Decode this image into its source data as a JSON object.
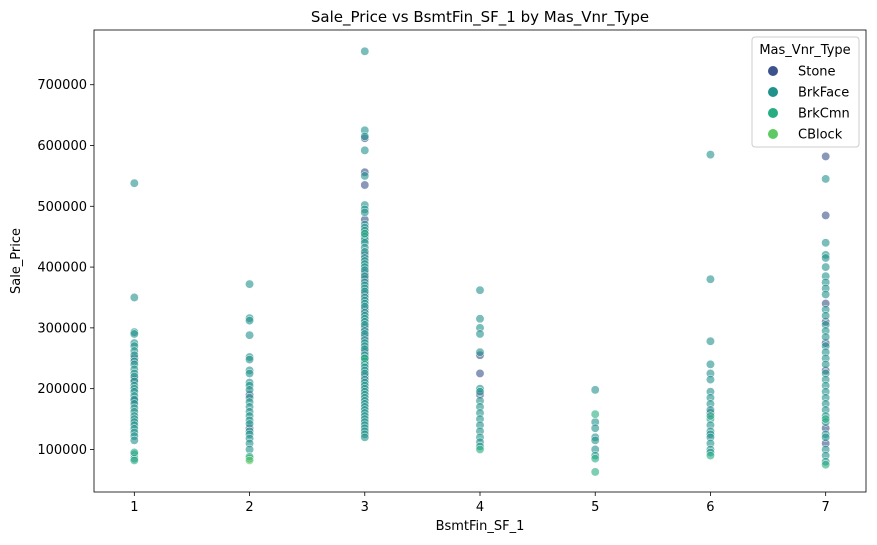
{
  "chart_data": {
    "type": "scatter",
    "title": "Sale_Price vs BsmtFin_SF_1 by Mas_Vnr_Type",
    "xlabel": "BsmtFin_SF_1",
    "ylabel": "Sale_Price",
    "xlim": [
      0.65,
      7.35
    ],
    "ylim": [
      30000,
      790000
    ],
    "xticks": [
      1,
      2,
      3,
      4,
      5,
      6,
      7
    ],
    "yticks": [
      100000,
      200000,
      300000,
      400000,
      500000,
      600000,
      700000
    ],
    "grid": false,
    "legend": {
      "title": "Mas_Vnr_Type",
      "placement": "top-right",
      "entries": [
        {
          "name": "Stone",
          "color": "#3b528b"
        },
        {
          "name": "BrkFace",
          "color": "#21918c"
        },
        {
          "name": "BrkCmn",
          "color": "#27ad81"
        },
        {
          "name": "CBlock",
          "color": "#5ec962"
        }
      ]
    },
    "series": [
      {
        "name": "Stone",
        "color": "#3b528b",
        "points": [
          [
            1,
            250000
          ],
          [
            1,
            180000
          ],
          [
            1,
            215000
          ],
          [
            2,
            135000
          ],
          [
            2,
            190000
          ],
          [
            3,
            612000
          ],
          [
            3,
            556000
          ],
          [
            3,
            535000
          ],
          [
            3,
            478000
          ],
          [
            3,
            455000
          ],
          [
            3,
            420000
          ],
          [
            3,
            390000
          ],
          [
            3,
            380000
          ],
          [
            3,
            355000
          ],
          [
            3,
            330000
          ],
          [
            3,
            300000
          ],
          [
            3,
            285000
          ],
          [
            3,
            260000
          ],
          [
            3,
            220000
          ],
          [
            4,
            255000
          ],
          [
            4,
            225000
          ],
          [
            4,
            190000
          ],
          [
            6,
            160000
          ],
          [
            7,
            582000
          ],
          [
            7,
            485000
          ],
          [
            7,
            340000
          ],
          [
            7,
            310000
          ],
          [
            7,
            275000
          ],
          [
            7,
            230000
          ],
          [
            7,
            135000
          ],
          [
            7,
            110000
          ]
        ]
      },
      {
        "name": "BrkFace",
        "color": "#21918c",
        "points": [
          [
            1,
            538000
          ],
          [
            1,
            350000
          ],
          [
            1,
            293000
          ],
          [
            1,
            290000
          ],
          [
            1,
            275000
          ],
          [
            1,
            270000
          ],
          [
            1,
            262000
          ],
          [
            1,
            255000
          ],
          [
            1,
            245000
          ],
          [
            1,
            240000
          ],
          [
            1,
            232000
          ],
          [
            1,
            225000
          ],
          [
            1,
            220000
          ],
          [
            1,
            212000
          ],
          [
            1,
            205000
          ],
          [
            1,
            200000
          ],
          [
            1,
            195000
          ],
          [
            1,
            188000
          ],
          [
            1,
            182000
          ],
          [
            1,
            175000
          ],
          [
            1,
            168000
          ],
          [
            1,
            162000
          ],
          [
            1,
            155000
          ],
          [
            1,
            150000
          ],
          [
            1,
            145000
          ],
          [
            1,
            140000
          ],
          [
            1,
            134000
          ],
          [
            1,
            128000
          ],
          [
            1,
            122000
          ],
          [
            1,
            115000
          ],
          [
            1,
            92000
          ],
          [
            1,
            85000
          ],
          [
            2,
            372000
          ],
          [
            2,
            316000
          ],
          [
            2,
            312000
          ],
          [
            2,
            288000
          ],
          [
            2,
            252000
          ],
          [
            2,
            248000
          ],
          [
            2,
            230000
          ],
          [
            2,
            225000
          ],
          [
            2,
            210000
          ],
          [
            2,
            205000
          ],
          [
            2,
            198000
          ],
          [
            2,
            185000
          ],
          [
            2,
            178000
          ],
          [
            2,
            170000
          ],
          [
            2,
            162000
          ],
          [
            2,
            155000
          ],
          [
            2,
            148000
          ],
          [
            2,
            142000
          ],
          [
            2,
            130000
          ],
          [
            2,
            125000
          ],
          [
            2,
            118000
          ],
          [
            2,
            110000
          ],
          [
            2,
            100000
          ],
          [
            2,
            85000
          ],
          [
            3,
            755000
          ],
          [
            3,
            625000
          ],
          [
            3,
            615000
          ],
          [
            3,
            592000
          ],
          [
            3,
            550000
          ],
          [
            3,
            502000
          ],
          [
            3,
            495000
          ],
          [
            3,
            490000
          ],
          [
            3,
            470000
          ],
          [
            3,
            465000
          ],
          [
            3,
            460000
          ],
          [
            3,
            450000
          ],
          [
            3,
            445000
          ],
          [
            3,
            440000
          ],
          [
            3,
            432000
          ],
          [
            3,
            425000
          ],
          [
            3,
            415000
          ],
          [
            3,
            410000
          ],
          [
            3,
            405000
          ],
          [
            3,
            400000
          ],
          [
            3,
            395000
          ],
          [
            3,
            385000
          ],
          [
            3,
            375000
          ],
          [
            3,
            370000
          ],
          [
            3,
            365000
          ],
          [
            3,
            360000
          ],
          [
            3,
            350000
          ],
          [
            3,
            345000
          ],
          [
            3,
            340000
          ],
          [
            3,
            335000
          ],
          [
            3,
            325000
          ],
          [
            3,
            320000
          ],
          [
            3,
            315000
          ],
          [
            3,
            310000
          ],
          [
            3,
            305000
          ],
          [
            3,
            295000
          ],
          [
            3,
            290000
          ],
          [
            3,
            280000
          ],
          [
            3,
            275000
          ],
          [
            3,
            270000
          ],
          [
            3,
            265000
          ],
          [
            3,
            255000
          ],
          [
            3,
            250000
          ],
          [
            3,
            245000
          ],
          [
            3,
            240000
          ],
          [
            3,
            235000
          ],
          [
            3,
            230000
          ],
          [
            3,
            225000
          ],
          [
            3,
            215000
          ],
          [
            3,
            210000
          ],
          [
            3,
            205000
          ],
          [
            3,
            200000
          ],
          [
            3,
            195000
          ],
          [
            3,
            190000
          ],
          [
            3,
            185000
          ],
          [
            3,
            180000
          ],
          [
            3,
            175000
          ],
          [
            3,
            170000
          ],
          [
            3,
            165000
          ],
          [
            3,
            160000
          ],
          [
            3,
            155000
          ],
          [
            3,
            150000
          ],
          [
            3,
            145000
          ],
          [
            3,
            140000
          ],
          [
            3,
            135000
          ],
          [
            3,
            130000
          ],
          [
            3,
            125000
          ],
          [
            3,
            120000
          ],
          [
            4,
            362000
          ],
          [
            4,
            315000
          ],
          [
            4,
            300000
          ],
          [
            4,
            290000
          ],
          [
            4,
            260000
          ],
          [
            4,
            200000
          ],
          [
            4,
            195000
          ],
          [
            4,
            180000
          ],
          [
            4,
            170000
          ],
          [
            4,
            160000
          ],
          [
            4,
            150000
          ],
          [
            4,
            140000
          ],
          [
            4,
            130000
          ],
          [
            4,
            120000
          ],
          [
            4,
            112000
          ],
          [
            4,
            105000
          ],
          [
            5,
            198000
          ],
          [
            5,
            145000
          ],
          [
            5,
            135000
          ],
          [
            5,
            120000
          ],
          [
            5,
            115000
          ],
          [
            5,
            100000
          ],
          [
            5,
            90000
          ],
          [
            6,
            585000
          ],
          [
            6,
            380000
          ],
          [
            6,
            278000
          ],
          [
            6,
            240000
          ],
          [
            6,
            225000
          ],
          [
            6,
            215000
          ],
          [
            6,
            195000
          ],
          [
            6,
            185000
          ],
          [
            6,
            175000
          ],
          [
            6,
            165000
          ],
          [
            6,
            150000
          ],
          [
            6,
            140000
          ],
          [
            6,
            130000
          ],
          [
            6,
            125000
          ],
          [
            6,
            120000
          ],
          [
            6,
            110000
          ],
          [
            6,
            100000
          ],
          [
            6,
            95000
          ],
          [
            7,
            545000
          ],
          [
            7,
            440000
          ],
          [
            7,
            420000
          ],
          [
            7,
            415000
          ],
          [
            7,
            400000
          ],
          [
            7,
            385000
          ],
          [
            7,
            375000
          ],
          [
            7,
            365000
          ],
          [
            7,
            355000
          ],
          [
            7,
            330000
          ],
          [
            7,
            320000
          ],
          [
            7,
            305000
          ],
          [
            7,
            295000
          ],
          [
            7,
            285000
          ],
          [
            7,
            270000
          ],
          [
            7,
            260000
          ],
          [
            7,
            250000
          ],
          [
            7,
            240000
          ],
          [
            7,
            225000
          ],
          [
            7,
            215000
          ],
          [
            7,
            205000
          ],
          [
            7,
            195000
          ],
          [
            7,
            185000
          ],
          [
            7,
            175000
          ],
          [
            7,
            165000
          ],
          [
            7,
            155000
          ],
          [
            7,
            145000
          ],
          [
            7,
            125000
          ],
          [
            7,
            120000
          ],
          [
            7,
            100000
          ],
          [
            7,
            90000
          ],
          [
            7,
            80000
          ]
        ]
      },
      {
        "name": "BrkCmn",
        "color": "#27ad81",
        "points": [
          [
            1,
            95000
          ],
          [
            1,
            82000
          ],
          [
            2,
            88000
          ],
          [
            3,
            455000
          ],
          [
            3,
            250000
          ],
          [
            4,
            100000
          ],
          [
            5,
            158000
          ],
          [
            5,
            85000
          ],
          [
            5,
            63000
          ],
          [
            6,
            155000
          ],
          [
            6,
            90000
          ],
          [
            7,
            150000
          ],
          [
            7,
            75000
          ]
        ]
      },
      {
        "name": "CBlock",
        "color": "#5ec962",
        "points": [
          [
            2,
            82000
          ]
        ]
      }
    ]
  }
}
